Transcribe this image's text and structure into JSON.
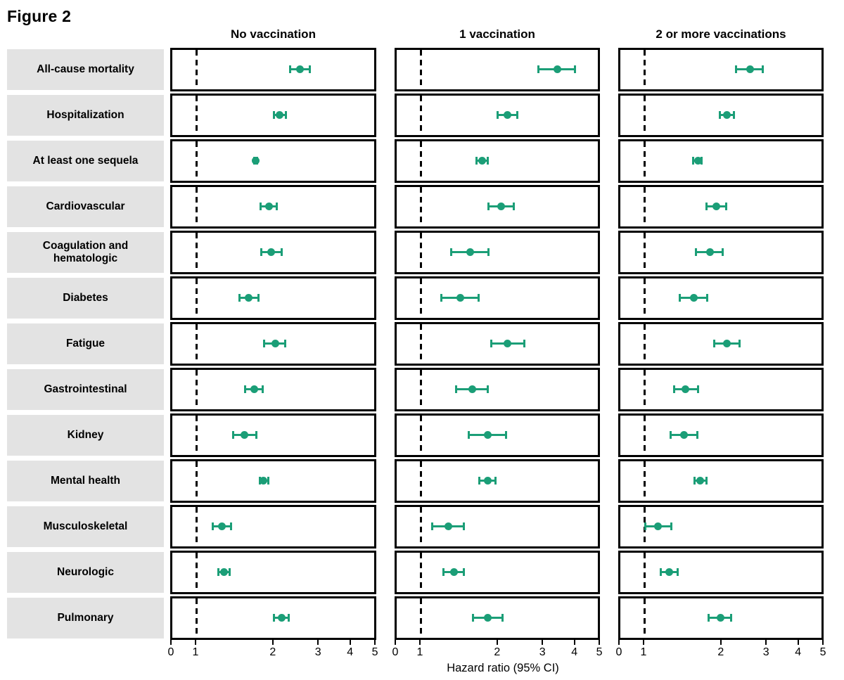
{
  "title": "Figure 2",
  "chart_data": {
    "type": "forest",
    "xlabel": "Hazard ratio (95% CI)",
    "x_ticks": [
      0,
      1,
      2,
      3,
      4,
      5
    ],
    "x_scale": "log between 1 and 5; 0 pinned at panel left edge",
    "reference_line": 1,
    "grid": "off",
    "marker_color": "#1b9e77",
    "row_label_bg": "#e3e3e3",
    "columns": [
      "No vaccination",
      "1 vaccination",
      "2 or more vaccinations"
    ],
    "outcomes": [
      "All-cause mortality",
      "Hospitalization",
      "At least one sequela",
      "Cardiovascular",
      "Coagulation and hematologic",
      "Diabetes",
      "Fatigue",
      "Gastrointestinal",
      "Kidney",
      "Mental health",
      "Musculoskeletal",
      "Neurologic",
      "Pulmonary"
    ],
    "series": [
      {
        "name": "No vaccination",
        "values": [
          {
            "hr": 2.55,
            "lo": 2.33,
            "hi": 2.79
          },
          {
            "hr": 2.13,
            "lo": 2.01,
            "hi": 2.26
          },
          {
            "hr": 1.71,
            "lo": 1.69,
            "hi": 1.74
          },
          {
            "hr": 1.93,
            "lo": 1.79,
            "hi": 2.08
          },
          {
            "hr": 1.97,
            "lo": 1.8,
            "hi": 2.17
          },
          {
            "hr": 1.61,
            "lo": 1.48,
            "hi": 1.76
          },
          {
            "hr": 2.04,
            "lo": 1.84,
            "hi": 2.24
          },
          {
            "hr": 1.69,
            "lo": 1.56,
            "hi": 1.83
          },
          {
            "hr": 1.55,
            "lo": 1.4,
            "hi": 1.73
          },
          {
            "hr": 1.84,
            "lo": 1.77,
            "hi": 1.93
          },
          {
            "hr": 1.27,
            "lo": 1.16,
            "hi": 1.38
          },
          {
            "hr": 1.29,
            "lo": 1.22,
            "hi": 1.36
          },
          {
            "hr": 2.16,
            "lo": 2.01,
            "hi": 2.31
          }
        ]
      },
      {
        "name": "1 vaccination",
        "values": [
          {
            "hr": 3.43,
            "lo": 2.89,
            "hi": 4.03
          },
          {
            "hr": 2.19,
            "lo": 2.0,
            "hi": 2.41
          },
          {
            "hr": 1.75,
            "lo": 1.66,
            "hi": 1.84
          },
          {
            "hr": 2.07,
            "lo": 1.84,
            "hi": 2.33
          },
          {
            "hr": 1.57,
            "lo": 1.32,
            "hi": 1.86
          },
          {
            "hr": 1.44,
            "lo": 1.21,
            "hi": 1.7
          },
          {
            "hr": 2.2,
            "lo": 1.89,
            "hi": 2.56
          },
          {
            "hr": 1.6,
            "lo": 1.38,
            "hi": 1.84
          },
          {
            "hr": 1.84,
            "lo": 1.55,
            "hi": 2.17
          },
          {
            "hr": 1.84,
            "lo": 1.7,
            "hi": 1.98
          },
          {
            "hr": 1.29,
            "lo": 1.11,
            "hi": 1.49
          },
          {
            "hr": 1.36,
            "lo": 1.23,
            "hi": 1.49
          },
          {
            "hr": 1.84,
            "lo": 1.61,
            "hi": 2.1
          }
        ]
      },
      {
        "name": "2 or more vaccinations",
        "values": [
          {
            "hr": 2.6,
            "lo": 2.29,
            "hi": 2.93
          },
          {
            "hr": 2.11,
            "lo": 1.98,
            "hi": 2.26
          },
          {
            "hr": 1.63,
            "lo": 1.56,
            "hi": 1.69
          },
          {
            "hr": 1.92,
            "lo": 1.75,
            "hi": 2.11
          },
          {
            "hr": 1.81,
            "lo": 1.59,
            "hi": 2.04
          },
          {
            "hr": 1.57,
            "lo": 1.38,
            "hi": 1.78
          },
          {
            "hr": 2.11,
            "lo": 1.88,
            "hi": 2.38
          },
          {
            "hr": 1.46,
            "lo": 1.31,
            "hi": 1.64
          },
          {
            "hr": 1.44,
            "lo": 1.27,
            "hi": 1.63
          },
          {
            "hr": 1.66,
            "lo": 1.57,
            "hi": 1.76
          },
          {
            "hr": 1.14,
            "lo": 1.01,
            "hi": 1.29
          },
          {
            "hr": 1.26,
            "lo": 1.16,
            "hi": 1.36
          },
          {
            "hr": 1.99,
            "lo": 1.79,
            "hi": 2.2
          }
        ]
      }
    ]
  }
}
